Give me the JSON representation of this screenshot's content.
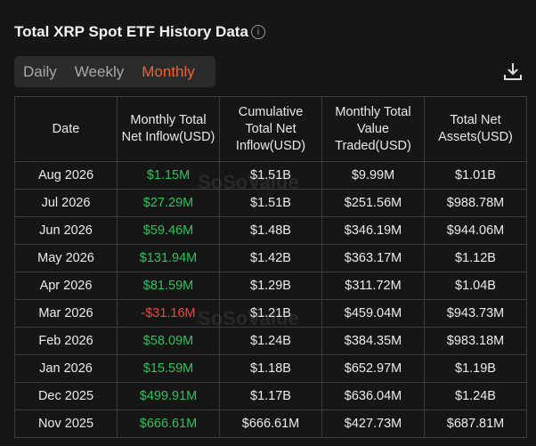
{
  "header": {
    "title": "Total XRP Spot ETF History Data",
    "tabs": [
      "Daily",
      "Weekly",
      "Monthly"
    ],
    "active_tab": 2
  },
  "watermark": "SoSoValue",
  "table": {
    "columns": [
      "Date",
      "Monthly Total Net Inflow(USD)",
      "Cumulative Total Net Inflow(USD)",
      "Monthly Total Value Traded(USD)",
      "Total Net Assets(USD)"
    ],
    "rows": [
      [
        "Aug 2026",
        "$1.15M",
        "$1.51B",
        "$9.99M",
        "$1.01B"
      ],
      [
        "Jul 2026",
        "$27.29M",
        "$1.51B",
        "$251.56M",
        "$988.78M"
      ],
      [
        "Jun 2026",
        "$59.46M",
        "$1.48B",
        "$346.19M",
        "$944.06M"
      ],
      [
        "May 2026",
        "$131.94M",
        "$1.42B",
        "$363.17M",
        "$1.12B"
      ],
      [
        "Apr 2026",
        "$81.59M",
        "$1.29B",
        "$311.72M",
        "$1.04B"
      ],
      [
        "Mar 2026",
        "-$31.16M",
        "$1.21B",
        "$459.04M",
        "$943.73M"
      ],
      [
        "Feb 2026",
        "$58.09M",
        "$1.24B",
        "$384.35M",
        "$983.18M"
      ],
      [
        "Jan 2026",
        "$15.59M",
        "$1.18B",
        "$652.97M",
        "$1.19B"
      ],
      [
        "Dec 2025",
        "$499.91M",
        "$1.17B",
        "$636.04M",
        "$1.24B"
      ],
      [
        "Nov 2025",
        "$666.61M",
        "$666.61M",
        "$427.73M",
        "$687.81M"
      ]
    ]
  }
}
